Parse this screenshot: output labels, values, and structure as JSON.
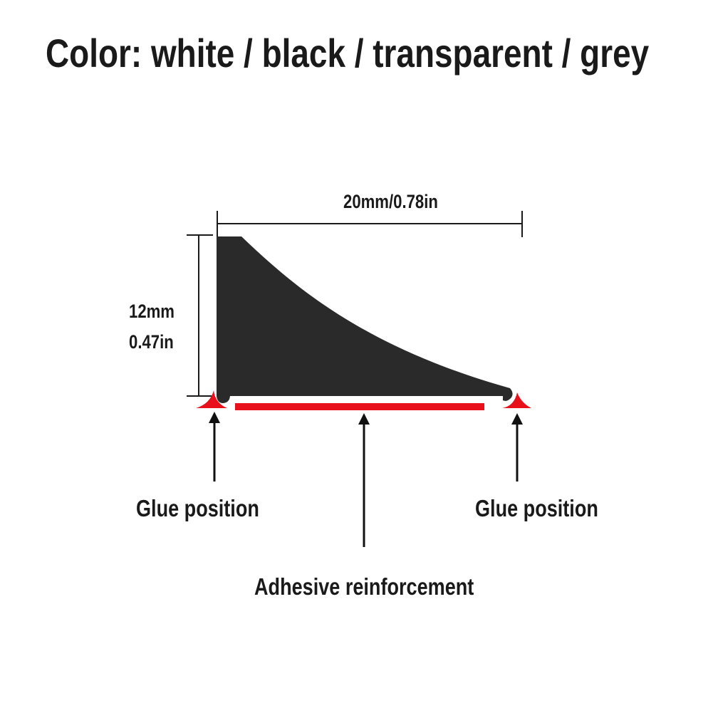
{
  "title": "Color: white / black / transparent / grey",
  "dimensions": {
    "width": "20mm/0.78in",
    "height_mm": "12mm",
    "height_in": "0.47in"
  },
  "labels": {
    "glue_left": "Glue position",
    "glue_right": "Glue position",
    "adhesive": "Adhesive reinforcement"
  },
  "colors": {
    "profile": "#2a2a2a",
    "glue": "#e8101a",
    "lines": "#1a1a1a"
  }
}
